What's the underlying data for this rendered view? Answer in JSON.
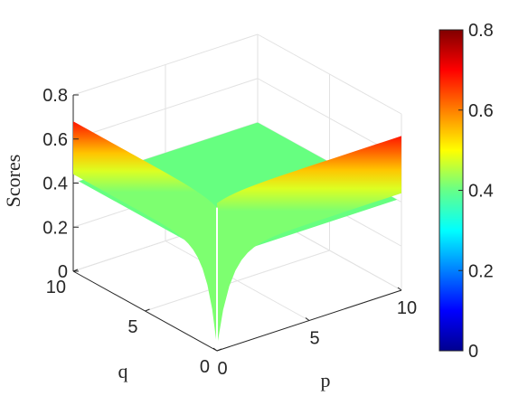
{
  "chart_data": {
    "type": "surface",
    "title": "",
    "xlabel": "p",
    "ylabel": "q",
    "zlabel": "Scores",
    "x_ticks": [
      "0",
      "5",
      "10"
    ],
    "y_ticks": [
      "0",
      "5",
      "10"
    ],
    "z_ticks": [
      "0",
      "0.2",
      "0.4",
      "0.6",
      "0.8"
    ],
    "xlim": [
      0,
      10
    ],
    "ylim": [
      0,
      10
    ],
    "zlim": [
      0,
      0.8
    ],
    "grid": true,
    "colormap": "jet",
    "colorbar": {
      "ticks": [
        "0",
        "0.2",
        "0.4",
        "0.6",
        "0.8"
      ],
      "lim": [
        0,
        0.8
      ]
    },
    "surface": {
      "description_values": {
        "plateau_score": 0.4,
        "edge_p0_top": 0.68,
        "edge_q0_top": 0.7,
        "corner_min": 0.02
      },
      "series": [
        {
          "name": "plateau (p>0, q>0)",
          "values": [
            0.4
          ]
        },
        {
          "name": "edge at p=0 across q (top)",
          "values": [
            0.66,
            0.67,
            0.68,
            0.68,
            0.68,
            0.68,
            0.68,
            0.68,
            0.68,
            0.68
          ]
        },
        {
          "name": "edge at q=0 across p (top)",
          "values": [
            0.64,
            0.66,
            0.67,
            0.68,
            0.69,
            0.69,
            0.7,
            0.7,
            0.7,
            0.7
          ]
        }
      ]
    }
  }
}
